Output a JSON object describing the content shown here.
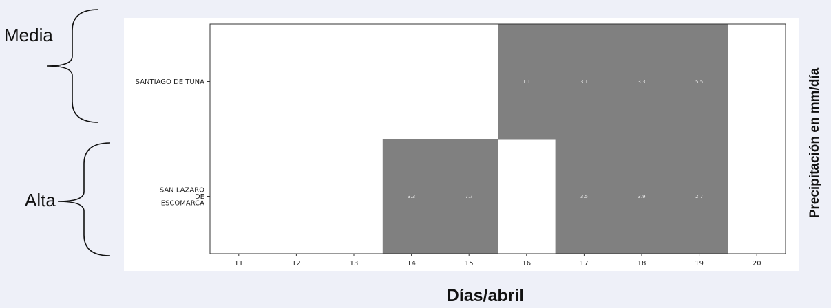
{
  "chart_data": {
    "type": "heatmap",
    "xlabel": "Días/abril",
    "ylabel": "Precipitación en mm/día",
    "x_ticks": [
      "11",
      "12",
      "13",
      "14",
      "15",
      "16",
      "17",
      "18",
      "19",
      "20"
    ],
    "rows": [
      {
        "label_lines": [
          "SANTIAGO DE TUNA"
        ],
        "group": "Media",
        "values": [
          null,
          null,
          null,
          null,
          null,
          1.1,
          3.1,
          3.3,
          5.5,
          null
        ]
      },
      {
        "label_lines": [
          "SAN LAZARO",
          "DE",
          "ESCOMARCA"
        ],
        "group": "Alta",
        "values": [
          null,
          null,
          null,
          3.3,
          7.7,
          null,
          3.5,
          3.9,
          2.7,
          null
        ]
      }
    ],
    "groups": [
      "Media",
      "Alta"
    ],
    "cell_color": "#808080",
    "empty_color": "#ffffff",
    "value_text_color": "#e8e8e8",
    "grid": false
  },
  "colors": {
    "background": "#eef0f8",
    "plot_area": "#ffffff"
  }
}
